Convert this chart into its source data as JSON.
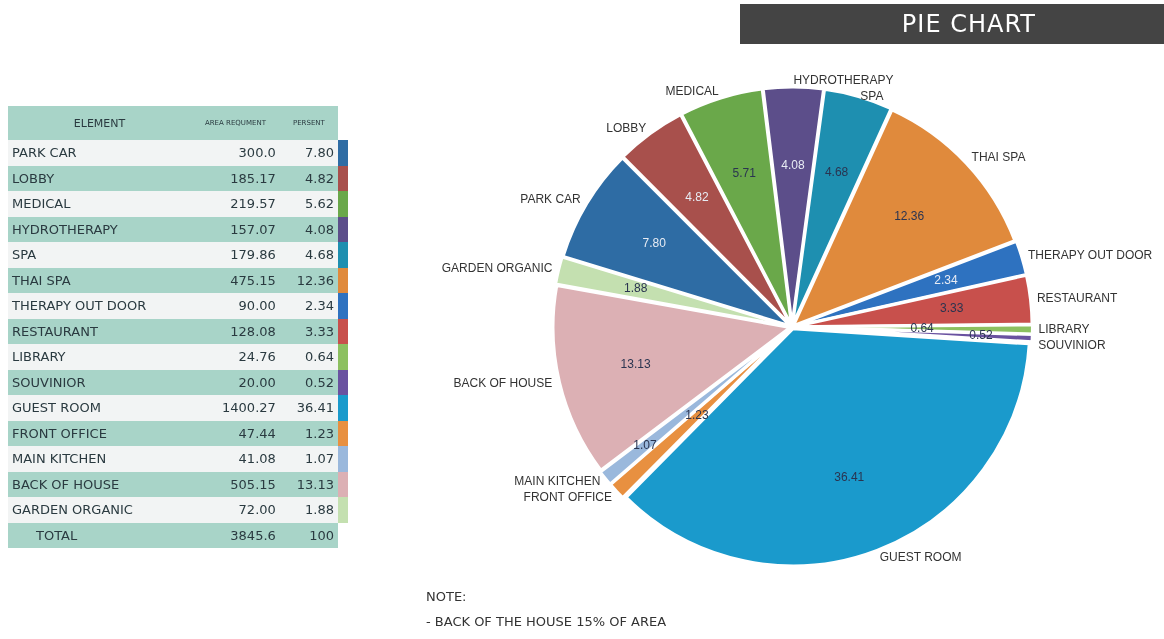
{
  "chart_data": [
    {
      "type": "other",
      "xlabel": "ELEMENT",
      "categories": [
        "PARK CAR",
        "LOBBY",
        "MEDICAL",
        "HYDROTHERAPY",
        "SPA",
        "THAI SPA",
        "THERAPY OUT DOOR",
        "RESTAURANT",
        "LIBRARY",
        "SOUVINIOR",
        "GUEST ROOM",
        "FRONT OFFICE",
        "MAIN KITCHEN",
        "BACK OF HOUSE",
        "GARDEN ORGANIC"
      ],
      "series": [
        {
          "name": "AREA REQUMENT",
          "colors": [
            "#f2f4f4",
            "#a8d4c8",
            "#f2f4f4",
            "#a8d4c8",
            "#f2f4f4",
            "#a8d4c8",
            "#f2f4f4",
            "#a8d4c8",
            "#f2f4f4",
            "#a8d4c8",
            "#f2f4f4",
            "#a8d4c8",
            "#f2f4f4",
            "#a8d4c8",
            "#f2f4f4"
          ],
          "value_labels": [
            "300.0",
            "185.17",
            "219.57",
            "157.07",
            "179.86",
            "475.15",
            "90.00",
            "128.08",
            "24.76",
            "20.00",
            "1400.27",
            "47.44",
            "41.08",
            "505.15",
            "72.00"
          ],
          "values": [
            300.0,
            185.17,
            219.57,
            157.07,
            179.86,
            475.15,
            90.0,
            128.08,
            24.76,
            20.0,
            1400.27,
            47.44,
            41.08,
            505.15,
            72.0
          ]
        },
        {
          "name": "PERSENT",
          "colors": [
            "#f2f4f4",
            "#a8d4c8",
            "#f2f4f4",
            "#a8d4c8",
            "#f2f4f4",
            "#a8d4c8",
            "#f2f4f4",
            "#a8d4c8",
            "#f2f4f4",
            "#a8d4c8",
            "#f2f4f4",
            "#a8d4c8",
            "#f2f4f4",
            "#a8d4c8",
            "#f2f4f4"
          ],
          "value_labels": [
            "7.80",
            "4.82",
            "5.62",
            "4.08",
            "4.68",
            "12.36",
            "2.34",
            "3.33",
            "0.64",
            "0.52",
            "36.41",
            "1.23",
            "1.07",
            "13.13",
            "1.88"
          ],
          "values": [
            7.8,
            4.82,
            5.62,
            4.08,
            4.68,
            12.36,
            2.34,
            3.33,
            0.64,
            0.52,
            36.41,
            1.23,
            1.07,
            13.13,
            1.88
          ]
        }
      ],
      "annotations": [
        "TOTAL"
      ],
      "totals": [
        "3845.6",
        "100"
      ]
    },
    {
      "type": "pie",
      "title": "PIE CHART",
      "categories": [
        "PARK CAR",
        "LOBBY",
        "MEDICAL",
        "HYDROTHERAPY",
        "SPA",
        "THAI SPA",
        "THERAPY OUT DOOR",
        "RESTAURANT",
        "LIBRARY",
        "SOUVINIOR",
        "GUEST ROOM",
        "FRONT OFFICE",
        "MAIN KITCHEN",
        "BACK OF HOUSE",
        "GARDEN ORGANIC"
      ],
      "values": [
        7.8,
        4.82,
        5.71,
        4.08,
        4.68,
        12.36,
        2.34,
        3.33,
        0.64,
        0.52,
        36.41,
        1.23,
        1.07,
        13.13,
        1.88
      ],
      "value_labels": [
        "7.80",
        "4.82",
        "5.71",
        "4.08",
        "4.68",
        "12.36",
        "2.34",
        "3.33",
        "0.64",
        "0.52",
        "36.41",
        "1.23",
        "1.07",
        "13.13",
        "1.88"
      ],
      "colors": [
        "#2e6ca4",
        "#a8504c",
        "#6aa84a",
        "#5c4e8a",
        "#1e8fb0",
        "#e08a3c",
        "#2e72c0",
        "#c8504c",
        "#8cc060",
        "#6a52a0",
        "#1a9acc",
        "#e89040",
        "#9ab8dc",
        "#dcb0b4",
        "#c4e0b0"
      ],
      "legend": false,
      "annotations": [
        "NOTE:",
        "- BACK OF THE HOUSE 15% OF AREA"
      ]
    }
  ]
}
